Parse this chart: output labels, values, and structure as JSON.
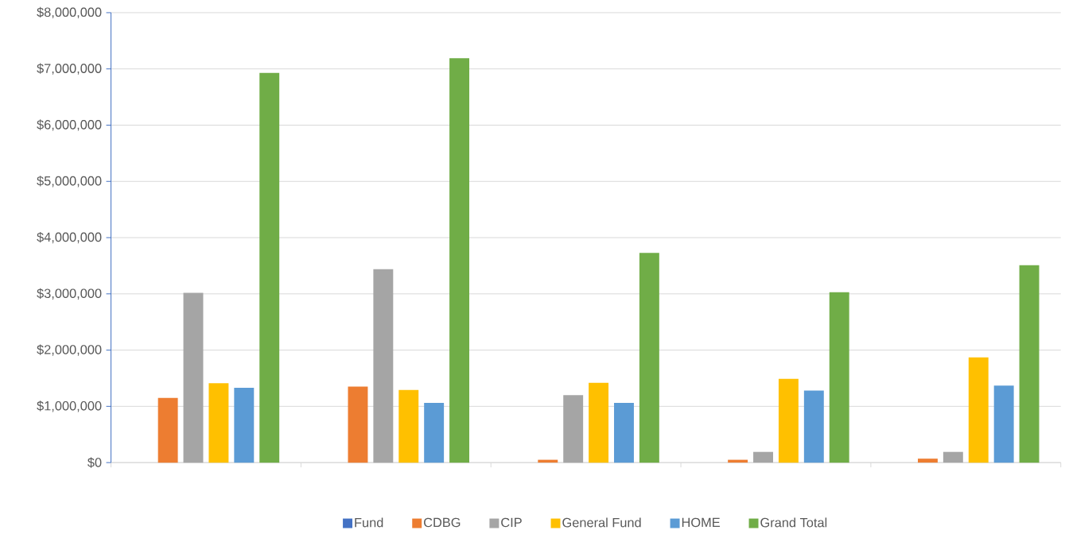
{
  "chart_data": {
    "type": "bar",
    "categories": [
      null,
      null,
      null,
      null,
      null
    ],
    "series": [
      {
        "name": "Fund",
        "color": "#4472c4",
        "values": [
          0,
          0,
          0,
          0,
          0
        ]
      },
      {
        "name": "CDBG",
        "color": "#ed7d31",
        "values": [
          1150000,
          1350000,
          50000,
          50000,
          70000
        ]
      },
      {
        "name": "CIP",
        "color": "#a5a5a5",
        "values": [
          3020000,
          3440000,
          1200000,
          190000,
          190000
        ]
      },
      {
        "name": "General Fund",
        "color": "#ffc000",
        "values": [
          1410000,
          1290000,
          1420000,
          1490000,
          1870000
        ]
      },
      {
        "name": "HOME",
        "color": "#5b9bd5",
        "values": [
          1330000,
          1060000,
          1060000,
          1280000,
          1370000
        ]
      },
      {
        "name": "Grand Total",
        "color": "#70ad47",
        "values": [
          6930000,
          7190000,
          3730000,
          3030000,
          3510000
        ]
      }
    ],
    "ylim": [
      0,
      8000000
    ],
    "yticks": [
      {
        "value": 0,
        "label": "$0"
      },
      {
        "value": 1000000,
        "label": "$1,000,000"
      },
      {
        "value": 2000000,
        "label": "$2,000,000"
      },
      {
        "value": 3000000,
        "label": "$3,000,000"
      },
      {
        "value": 4000000,
        "label": "$4,000,000"
      },
      {
        "value": 5000000,
        "label": "$5,000,000"
      },
      {
        "value": 6000000,
        "label": "$6,000,000"
      },
      {
        "value": 7000000,
        "label": "$7,000,000"
      },
      {
        "value": 8000000,
        "label": "$8,000,000"
      }
    ],
    "grid": "y",
    "legend": "bottom"
  }
}
